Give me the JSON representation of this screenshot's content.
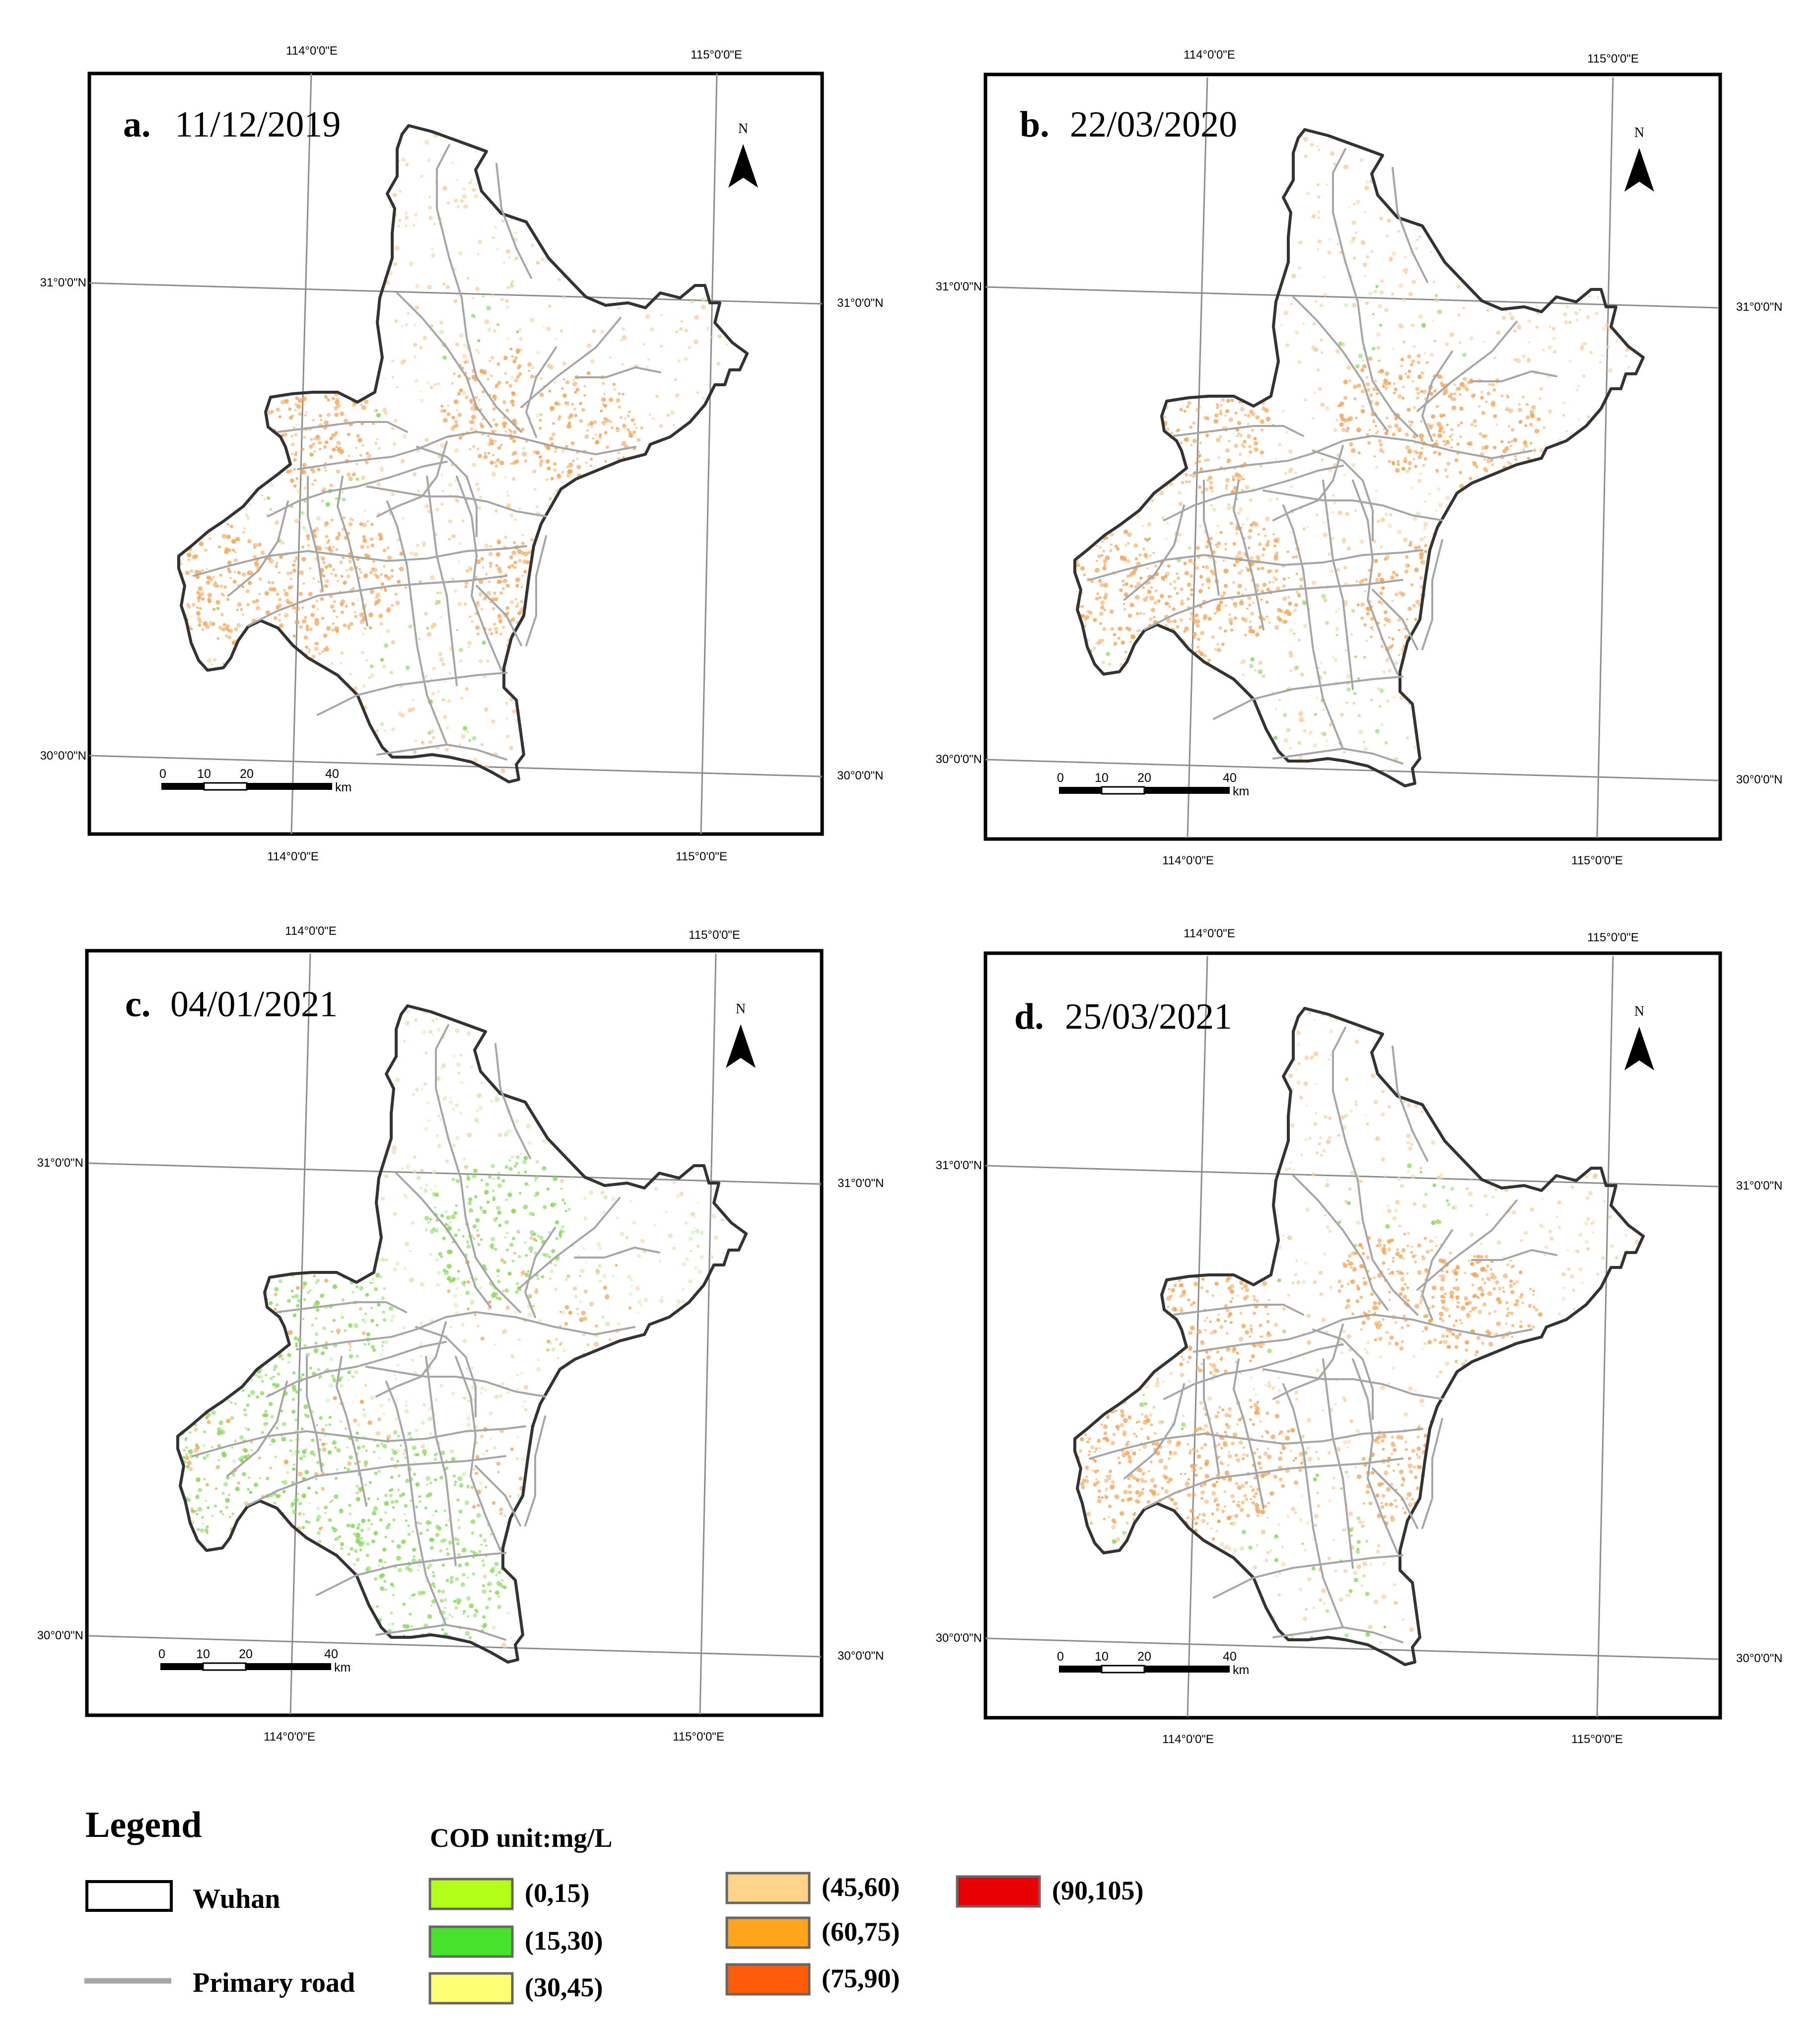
{
  "panels": [
    {
      "letter": "a.",
      "date": "11/12/2019",
      "lon_top": [
        "114°0'0\"E",
        "115°0'0\"E"
      ],
      "lon_bottom": [
        "114°0'0\"E",
        "115°0'0\"E"
      ],
      "lat_left": [
        "31°0'0\"N",
        "30°0'0\"N"
      ],
      "lat_right": [
        "31°0'0\"N",
        "30°0'0\"N"
      ],
      "north": "N",
      "scale_ticks": [
        "0",
        "10",
        "20",
        "40"
      ],
      "scale_unit": "km",
      "cod_pattern": {
        "orange": 0.9,
        "green": 0.1
      }
    },
    {
      "letter": "b.",
      "date": "22/03/2020",
      "lon_top": [
        "114°0'0\"E",
        "115°0'0\"E"
      ],
      "lon_bottom": [
        "114°0'0\"E",
        "115°0'0\"E"
      ],
      "lat_left": [
        "31°0'0\"N",
        "30°0'0\"N"
      ],
      "lat_right": [
        "31°0'0\"N",
        "30°0'0\"N"
      ],
      "north": "N",
      "scale_ticks": [
        "0",
        "10",
        "20",
        "40"
      ],
      "scale_unit": "km",
      "cod_pattern": {
        "orange": 1.0,
        "green": 0.1
      }
    },
    {
      "letter": "c.",
      "date": "04/01/2021",
      "lon_top": [
        "114°0'0\"E",
        "115°0'0\"E"
      ],
      "lon_bottom": [
        "114°0'0\"E",
        "115°0'0\"E"
      ],
      "lat_left": [
        "31°0'0\"N",
        "30°0'0\"N"
      ],
      "lat_right": [
        "31°0'0\"N",
        "30°0'0\"N"
      ],
      "north": "N",
      "scale_ticks": [
        "0",
        "10",
        "20",
        "40"
      ],
      "scale_unit": "km",
      "cod_pattern": {
        "orange": 0.2,
        "green": 1.0
      }
    },
    {
      "letter": "d.",
      "date": "25/03/2021",
      "lon_top": [
        "114°0'0\"E",
        "115°0'0\"E"
      ],
      "lon_bottom": [
        "114°0'0\"E",
        "115°0'0\"E"
      ],
      "lat_left": [
        "31°0'0\"N",
        "30°0'0\"N"
      ],
      "lat_right": [
        "31°0'0\"N",
        "30°0'0\"N"
      ],
      "north": "N",
      "scale_ticks": [
        "0",
        "10",
        "20",
        "40"
      ],
      "scale_unit": "km",
      "cod_pattern": {
        "orange": 1.0,
        "green": 0.1
      }
    }
  ],
  "legend": {
    "title": "Legend",
    "boundary_label": "Wuhan",
    "road_label": "Primary road",
    "cod_title": "COD unit:mg/L",
    "classes": [
      {
        "label": "(0,15)",
        "color": "#b3ff1a"
      },
      {
        "label": "(15,30)",
        "color": "#47e22b"
      },
      {
        "label": "(30,45)",
        "color": "#ffff73"
      },
      {
        "label": "(45,60)",
        "color": "#ffd28a"
      },
      {
        "label": "(60,75)",
        "color": "#ffa31a"
      },
      {
        "label": "(75,90)",
        "color": "#ff5c0a"
      },
      {
        "label": "(90,105)",
        "color": "#e60000"
      }
    ]
  },
  "colors": {
    "boundary": "#333333",
    "road": "#a6a6a6",
    "graticule": "#8c8c8c",
    "frame": "#000000",
    "orange_speck": "#f2a65c",
    "green_speck": "#86d85a"
  }
}
